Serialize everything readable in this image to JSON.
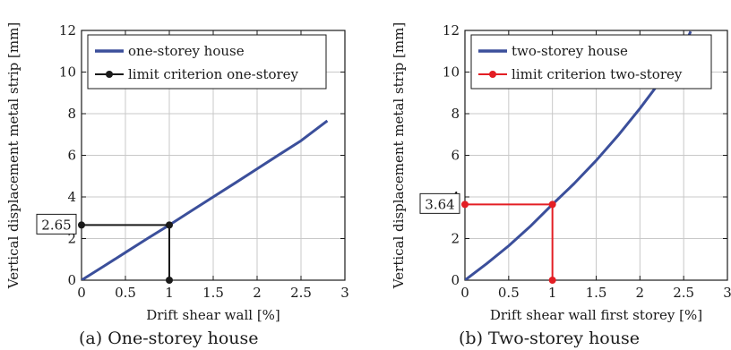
{
  "chart_data": [
    {
      "type": "line",
      "caption": "(a) One-storey house",
      "xlabel": "Drift shear wall [%]",
      "ylabel": "Vertical displacement metal strip [mm]",
      "xlim": [
        0,
        3
      ],
      "ylim": [
        0,
        12
      ],
      "xticks": [
        "0",
        "0.5",
        "1",
        "1.5",
        "2",
        "2.5",
        "3"
      ],
      "yticks": [
        "0",
        "2",
        "4",
        "6",
        "8",
        "10",
        "12"
      ],
      "grid": true,
      "legend_position": "top-left",
      "series": [
        {
          "name": "one-storey house",
          "kind": "curve",
          "color": "#3b4f9b",
          "x": [
            0,
            0.25,
            0.5,
            0.75,
            1.0,
            1.25,
            1.5,
            1.75,
            2.0,
            2.25,
            2.5,
            2.8
          ],
          "y": [
            0,
            0.66,
            1.33,
            2.0,
            2.65,
            3.33,
            4.0,
            4.67,
            5.35,
            6.03,
            6.7,
            7.66
          ]
        },
        {
          "name": "limit criterion one-storey",
          "kind": "criterion",
          "color": "#1a1a1a",
          "x": [
            0,
            1,
            1
          ],
          "y": [
            2.65,
            2.65,
            0
          ]
        }
      ],
      "annotation": {
        "text": "2.65",
        "value": 2.65
      }
    },
    {
      "type": "line",
      "caption": "(b) Two-storey house",
      "xlabel": "Drift shear wall first storey [%]",
      "ylabel": "Vertical displacement metal strip [mm]",
      "xlim": [
        0,
        3
      ],
      "ylim": [
        0,
        12
      ],
      "xticks": [
        "0",
        "0.5",
        "1",
        "1.5",
        "2",
        "2.5",
        "3"
      ],
      "yticks": [
        "0",
        "2",
        "4",
        "6",
        "8",
        "10",
        "12"
      ],
      "grid": true,
      "legend_position": "top-left",
      "series": [
        {
          "name": "two-storey house",
          "kind": "curve",
          "color": "#3b4f9b",
          "x": [
            0,
            0.25,
            0.5,
            0.75,
            1.0,
            1.25,
            1.5,
            1.75,
            2.0,
            2.25,
            2.5,
            2.58
          ],
          "y": [
            0,
            0.8,
            1.65,
            2.6,
            3.64,
            4.65,
            5.75,
            6.95,
            8.25,
            9.65,
            11.2,
            11.95
          ]
        },
        {
          "name": "limit criterion two-storey",
          "kind": "criterion",
          "color": "#e31e24",
          "x": [
            0,
            1,
            1
          ],
          "y": [
            3.64,
            3.64,
            0
          ]
        }
      ],
      "annotation": {
        "text": "3.64",
        "value": 3.64
      }
    }
  ]
}
